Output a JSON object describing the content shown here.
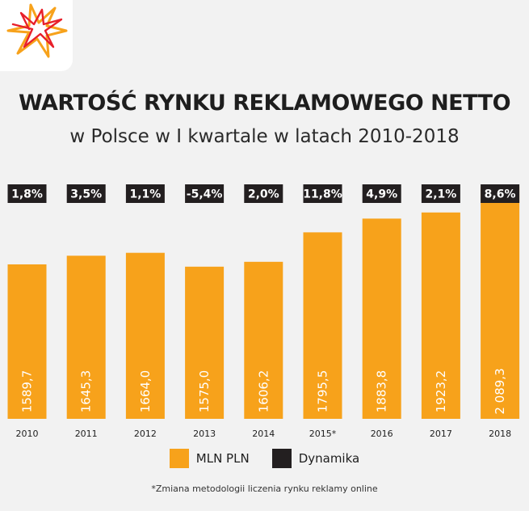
{
  "colors": {
    "bar": "#f7a21b",
    "dynamics_box": "#231f20",
    "background": "#f2f2f2"
  },
  "logo": {
    "icon": "orange-star-logo-icon"
  },
  "chart_data": {
    "type": "bar",
    "title": "WARTOŚĆ RYNKU REKLAMOWEGO NETTO",
    "subtitle": "w Polsce w I kwartale w latach 2010-2018",
    "categories": [
      "2010",
      "2011",
      "2012",
      "2013",
      "2014",
      "2015*",
      "2016",
      "2017",
      "2018"
    ],
    "series": [
      {
        "name": "MLN PLN",
        "values": [
          1589.7,
          1645.3,
          1664.0,
          1575.0,
          1606.2,
          1795.5,
          1883.8,
          1923.2,
          2089.3
        ],
        "labels": [
          "1589,7",
          "1645,3",
          "1664,0",
          "1575,0",
          "1606,2",
          "1795,5",
          "1883,8",
          "1923,2",
          "2 089,3"
        ]
      },
      {
        "name": "Dynamika",
        "values": [
          1.8,
          3.5,
          1.1,
          -5.4,
          2.0,
          11.8,
          4.9,
          2.1,
          8.6
        ],
        "labels": [
          "1,8%",
          "3,5%",
          "1,1%",
          "-5,4%",
          "2,0%",
          "11,8%",
          "4,9%",
          "2,1%",
          "8,6%"
        ]
      }
    ],
    "legend_position": "bottom",
    "grid": false
  },
  "legend": {
    "bars": "MLN PLN",
    "dynamics": "Dynamika"
  },
  "footnote": "*Zmiana metodologii liczenia rynku reklamy online"
}
